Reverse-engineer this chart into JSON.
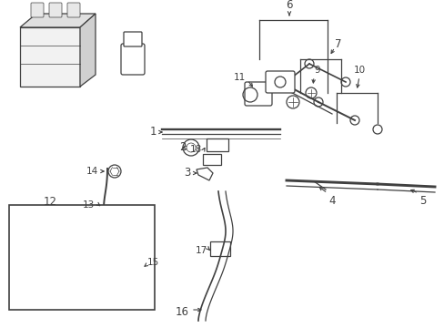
{
  "bg_color": "#ffffff",
  "line_color": "#404040",
  "fig_width": 4.89,
  "fig_height": 3.6,
  "dpi": 100,
  "parts": {
    "label_fontsize": 8.5,
    "small_fontsize": 7.5
  }
}
